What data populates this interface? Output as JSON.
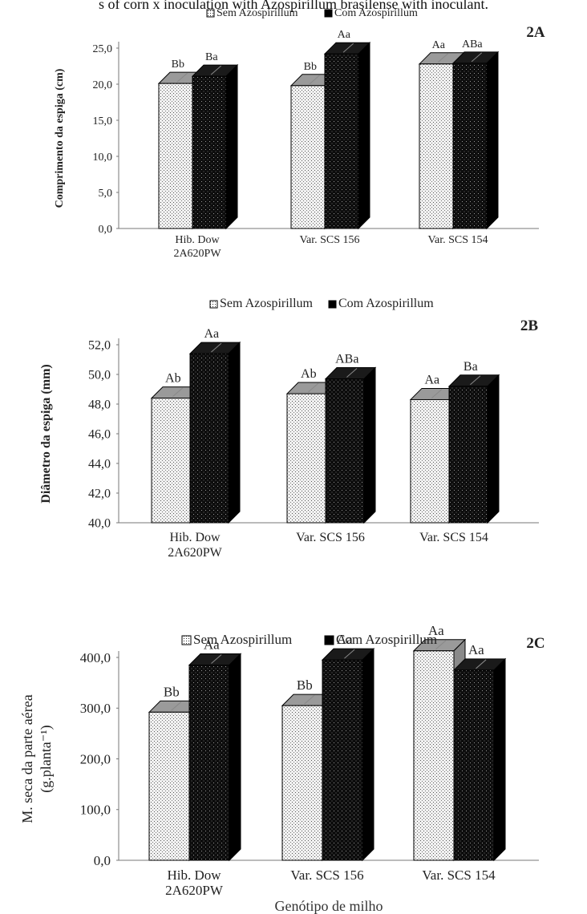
{
  "caption": "s of corn x inoculation with Azospirillum brasilense with inoculant.",
  "xlabel_shared": "Genótipo de milho",
  "colors": {
    "sem_fill": "#ececec",
    "com_fill": "#111111",
    "sem_top": "#9a9a9a",
    "com_side": "#000000"
  },
  "chart_data": [
    {
      "type": "bar",
      "panel_label": "2A",
      "title": "",
      "xlabel": "",
      "ylabel": "Comprimento da espiga (cm)",
      "ylim": [
        0,
        25
      ],
      "yticks": [
        "0,0",
        "5,0",
        "10,0",
        "15,0",
        "20,0",
        "25,0"
      ],
      "ytick_values": [
        0,
        5,
        10,
        15,
        20,
        25
      ],
      "categories": [
        [
          "Hib. Dow",
          "2A620PW"
        ],
        [
          "Var. SCS 156"
        ],
        [
          "Var. SCS 154"
        ]
      ],
      "legend_position": "top",
      "series": [
        {
          "name": "Sem Azospirillum",
          "values": [
            20.1,
            19.8,
            22.8
          ],
          "labels": [
            "Bb",
            "Bb",
            "Aa"
          ]
        },
        {
          "name": "Com Azospirillum",
          "values": [
            21.1,
            24.2,
            22.9
          ],
          "labels": [
            "Ba",
            "Aa",
            "ABa"
          ]
        }
      ]
    },
    {
      "type": "bar",
      "panel_label": "2B",
      "title": "",
      "xlabel": "",
      "ylabel": "Diâmetro da espiga (mm)",
      "ylim": [
        40,
        52
      ],
      "yticks": [
        "40,0",
        "42,0",
        "44,0",
        "46,0",
        "48,0",
        "50,0",
        "52,0"
      ],
      "ytick_values": [
        40,
        42,
        44,
        46,
        48,
        50,
        52
      ],
      "categories": [
        [
          "Hib. Dow",
          "2A620PW"
        ],
        [
          "Var. SCS 156"
        ],
        [
          "Var. SCS 154"
        ]
      ],
      "legend_position": "top",
      "series": [
        {
          "name": "Sem Azospirillum",
          "values": [
            48.4,
            48.7,
            48.3
          ],
          "labels": [
            "Ab",
            "Ab",
            "Aa"
          ]
        },
        {
          "name": "Com Azospirillum",
          "values": [
            51.4,
            49.7,
            49.2
          ],
          "labels": [
            "Aa",
            "ABa",
            "Ba"
          ]
        }
      ]
    },
    {
      "type": "bar",
      "panel_label": "2C",
      "title": "",
      "xlabel": "Genótipo de milho",
      "ylabel": [
        "M. seca da parte aérea",
        "(g.planta⁻¹)"
      ],
      "ylim": [
        0,
        400
      ],
      "yticks": [
        "0,0",
        "100,0",
        "200,0",
        "300,0",
        "400,0"
      ],
      "ytick_values": [
        0,
        100,
        200,
        300,
        400
      ],
      "categories": [
        [
          "Hib. Dow",
          "2A620PW"
        ],
        [
          "Var. SCS 156"
        ],
        [
          "Var. SCS 154"
        ]
      ],
      "legend_position": "top",
      "series": [
        {
          "name": "Sem Azospirillum",
          "values": [
            292,
            305,
            413
          ],
          "labels": [
            "Bb",
            "Bb",
            "Aa"
          ]
        },
        {
          "name": "Com Azospirillum",
          "values": [
            385,
            395,
            375
          ],
          "labels": [
            "Aa",
            "Aa",
            "Aa"
          ]
        }
      ]
    }
  ]
}
